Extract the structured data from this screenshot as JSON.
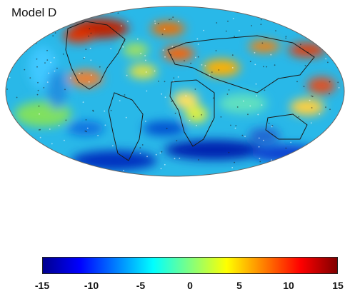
{
  "figure": {
    "model_label": "Model D",
    "projection": "mollweide",
    "coastlines": true,
    "dotted_points": true
  },
  "colorbar": {
    "min": -15,
    "max": 15,
    "ticks": [
      {
        "label": "-15",
        "value": -15
      },
      {
        "label": "-10",
        "value": -10
      },
      {
        "label": "-5",
        "value": -5
      },
      {
        "label": "0",
        "value": 0
      },
      {
        "label": "5",
        "value": 5
      },
      {
        "label": "10",
        "value": 10
      },
      {
        "label": "15",
        "value": 15
      }
    ],
    "colormap": [
      "#00008f",
      "#0000ff",
      "#0080ff",
      "#00ffff",
      "#80ff80",
      "#ffff00",
      "#ff8000",
      "#ff0000",
      "#800000"
    ]
  }
}
